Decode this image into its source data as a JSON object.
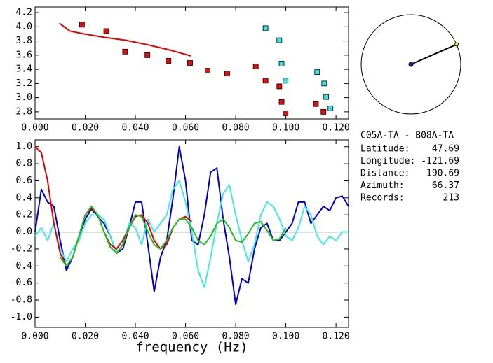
{
  "chart_data": [
    {
      "type": "scatter",
      "xlim": [
        0,
        0.125
      ],
      "ylim": [
        2.7,
        4.28
      ],
      "xticks": [
        {
          "value": 0,
          "label": "0.000"
        },
        {
          "value": 0.02,
          "label": "0.020"
        },
        {
          "value": 0.04,
          "label": "0.040"
        },
        {
          "value": 0.06,
          "label": "0.060"
        },
        {
          "value": 0.08,
          "label": "0.080"
        },
        {
          "value": 0.1,
          "label": "0.100"
        },
        {
          "value": 0.12,
          "label": "0.120"
        }
      ],
      "yticks": [
        {
          "value": 2.8,
          "label": "2.8"
        },
        {
          "value": 3,
          "label": "3.0"
        },
        3.2,
        3.4,
        3.6,
        3.8,
        {
          "value": 4,
          "label": "4.0"
        },
        4.2
      ],
      "series": [
        {
          "style": "markers",
          "color": "#e01010",
          "x": [
            0.0187,
            0.0284,
            0.0359,
            0.0448,
            0.0532,
            0.0618,
            0.0688,
            0.0766,
            0.088,
            0.0919,
            0.0974,
            0.0983,
            0.0999,
            0.112,
            0.115
          ],
          "values": [
            4.03,
            3.94,
            3.65,
            3.6,
            3.52,
            3.49,
            3.38,
            3.34,
            3.44,
            3.24,
            3.16,
            2.94,
            2.78,
            2.91,
            2.8
          ]
        },
        {
          "style": "markers",
          "color": "#40e0e0",
          "x": [
            0.0919,
            0.0974,
            0.0983,
            0.0999,
            0.1125,
            0.1153,
            0.1161,
            0.1178
          ],
          "values": [
            3.98,
            3.81,
            3.48,
            3.24,
            3.36,
            3.2,
            3.01,
            2.85
          ]
        },
        {
          "style": "line",
          "color": "#e00000",
          "x": [
            0.0097,
            0.0139,
            0.0195,
            0.0278,
            0.0362,
            0.0445,
            0.0529,
            0.0621
          ],
          "values": [
            4.05,
            3.94,
            3.9,
            3.85,
            3.81,
            3.75,
            3.68,
            3.59
          ]
        }
      ]
    },
    {
      "type": "line",
      "x_label": "frequency (Hz)",
      "xlim": [
        0,
        0.125
      ],
      "ylim": [
        -1.12,
        1.08
      ],
      "baseline": 0,
      "xticks": [
        {
          "value": 0,
          "label": "0.000"
        },
        {
          "value": 0.02,
          "label": "0.020"
        },
        {
          "value": 0.04,
          "label": "0.040"
        },
        {
          "value": 0.06,
          "label": "0.060"
        },
        {
          "value": 0.08,
          "label": "0.080"
        },
        {
          "value": 0.1,
          "label": "0.100"
        },
        {
          "value": 0.12,
          "label": "0.120"
        }
      ],
      "yticks": [
        {
          "value": -1,
          "label": "-1.0"
        },
        {
          "value": -0.8,
          "label": "-0.8"
        },
        {
          "value": -0.6,
          "label": "-0.6"
        },
        {
          "value": -0.4,
          "label": "-0.4"
        },
        {
          "value": -0.2,
          "label": "-0.2"
        },
        {
          "value": 0,
          "label": "0.0"
        },
        0.2,
        0.4,
        0.6,
        0.8,
        {
          "value": 1,
          "label": "1.0"
        }
      ],
      "series": [
        {
          "style": "line",
          "color": "#0000c8",
          "x": [
            0,
            0.0025,
            0.005,
            0.0075,
            0.01,
            0.0125,
            0.015,
            0.0175,
            0.02,
            0.0225,
            0.025,
            0.0275,
            0.03,
            0.0325,
            0.035,
            0.0375,
            0.04,
            0.0425,
            0.045,
            0.0475,
            0.05,
            0.0525,
            0.055,
            0.0575,
            0.06,
            0.0625,
            0.065,
            0.0675,
            0.07,
            0.0725,
            0.075,
            0.0775,
            0.08,
            0.0825,
            0.085,
            0.0875,
            0.09,
            0.0925,
            0.095,
            0.0975,
            0.1,
            0.1025,
            0.105,
            0.1075,
            0.11,
            0.1125,
            0.115,
            0.1175,
            0.12,
            0.1225,
            0.125
          ],
          "values": [
            0.0,
            0.5,
            0.35,
            0.3,
            -0.1,
            -0.45,
            -0.3,
            -0.05,
            0.15,
            0.27,
            0.18,
            0.1,
            -0.05,
            -0.25,
            -0.2,
            0.05,
            0.35,
            0.35,
            -0.15,
            -0.7,
            -0.3,
            -0.1,
            0.4,
            1.0,
            0.6,
            -0.1,
            -0.15,
            0.2,
            0.7,
            0.75,
            0.15,
            -0.3,
            -0.85,
            -0.55,
            -0.6,
            -0.2,
            0.05,
            0.1,
            -0.1,
            -0.1,
            0.0,
            0.1,
            0.35,
            0.35,
            0.1,
            0.2,
            0.3,
            0.25,
            0.4,
            0.42,
            0.3
          ]
        },
        {
          "style": "line",
          "color": "#40e8e8",
          "x": [
            0,
            0.0025,
            0.005,
            0.0075,
            0.01,
            0.0125,
            0.015,
            0.0175,
            0.02,
            0.0225,
            0.025,
            0.0275,
            0.03,
            0.0325,
            0.035,
            0.0375,
            0.04,
            0.0425,
            0.045,
            0.0475,
            0.05,
            0.0525,
            0.055,
            0.0575,
            0.06,
            0.0625,
            0.065,
            0.0675,
            0.07,
            0.0725,
            0.075,
            0.0775,
            0.08,
            0.0825,
            0.085,
            0.0875,
            0.09,
            0.0925,
            0.095,
            0.0975,
            0.1,
            0.1025,
            0.105,
            0.1075,
            0.11,
            0.1125,
            0.115,
            0.1175,
            0.12,
            0.1225,
            0.125
          ],
          "values": [
            -0.05,
            0.05,
            -0.1,
            0.1,
            -0.2,
            -0.35,
            -0.2,
            -0.1,
            0.1,
            0.2,
            0.2,
            0.15,
            -0.05,
            -0.25,
            -0.15,
            0.1,
            0.05,
            -0.15,
            0.15,
            0.0,
            0.1,
            0.2,
            0.5,
            0.6,
            0.35,
            0.0,
            -0.45,
            -0.65,
            -0.3,
            0.1,
            0.45,
            0.55,
            0.2,
            -0.1,
            -0.35,
            -0.15,
            0.2,
            0.35,
            0.3,
            0.15,
            -0.05,
            -0.1,
            0.05,
            0.3,
            0.2,
            -0.05,
            -0.15,
            -0.05,
            -0.1,
            0.0,
            0.0
          ]
        },
        {
          "style": "line",
          "color": "#e00000",
          "x": [
            0,
            0.0025,
            0.005,
            0.0075,
            0.01,
            0.0125,
            0.015,
            0.0175,
            0.02,
            0.0225,
            0.025,
            0.0275,
            0.03,
            0.0325,
            0.035,
            0.0375,
            0.04,
            0.0425,
            0.045,
            0.0475,
            0.05,
            0.0525,
            0.055,
            0.0575,
            0.06,
            0.0625
          ],
          "values": [
            1.0,
            0.93,
            0.6,
            0.1,
            -0.25,
            -0.4,
            -0.3,
            -0.05,
            0.2,
            0.28,
            0.2,
            0.0,
            -0.15,
            -0.2,
            -0.1,
            0.05,
            0.18,
            0.2,
            0.1,
            -0.1,
            -0.2,
            -0.15,
            0.05,
            0.15,
            0.18,
            0.12
          ]
        },
        {
          "style": "line",
          "color": "#20c020",
          "x": [
            0.01,
            0.0125,
            0.015,
            0.0175,
            0.02,
            0.0225,
            0.025,
            0.0275,
            0.03,
            0.0325,
            0.035,
            0.0375,
            0.04,
            0.0425,
            0.045,
            0.0475,
            0.05,
            0.0525,
            0.055,
            0.0575,
            0.06,
            0.0625,
            0.065,
            0.0675,
            0.07,
            0.0725,
            0.075,
            0.0775,
            0.08,
            0.0825,
            0.085,
            0.0875,
            0.09,
            0.0925,
            0.095,
            0.0975,
            0.1
          ],
          "values": [
            -0.3,
            -0.4,
            -0.3,
            -0.05,
            0.2,
            0.3,
            0.2,
            0.0,
            -0.18,
            -0.25,
            -0.15,
            0.05,
            0.2,
            0.18,
            0.0,
            -0.15,
            -0.2,
            -0.1,
            0.05,
            0.15,
            0.15,
            0.05,
            -0.1,
            -0.15,
            -0.05,
            0.1,
            0.15,
            0.05,
            -0.1,
            -0.12,
            -0.02,
            0.1,
            0.12,
            0.02,
            -0.1,
            -0.08,
            0.05
          ]
        }
      ]
    }
  ],
  "station_info": {
    "title": "C05A-TA - B08A-TA",
    "rows": [
      {
        "label": "Latitude:",
        "value": 47.69
      },
      {
        "label": "Longitude:",
        "value": -121.69
      },
      {
        "label": "Distance:",
        "value": 190.69
      },
      {
        "label": "Azimuth:",
        "value": 66.37
      },
      {
        "label": "Records:",
        "value": 213
      }
    ]
  }
}
